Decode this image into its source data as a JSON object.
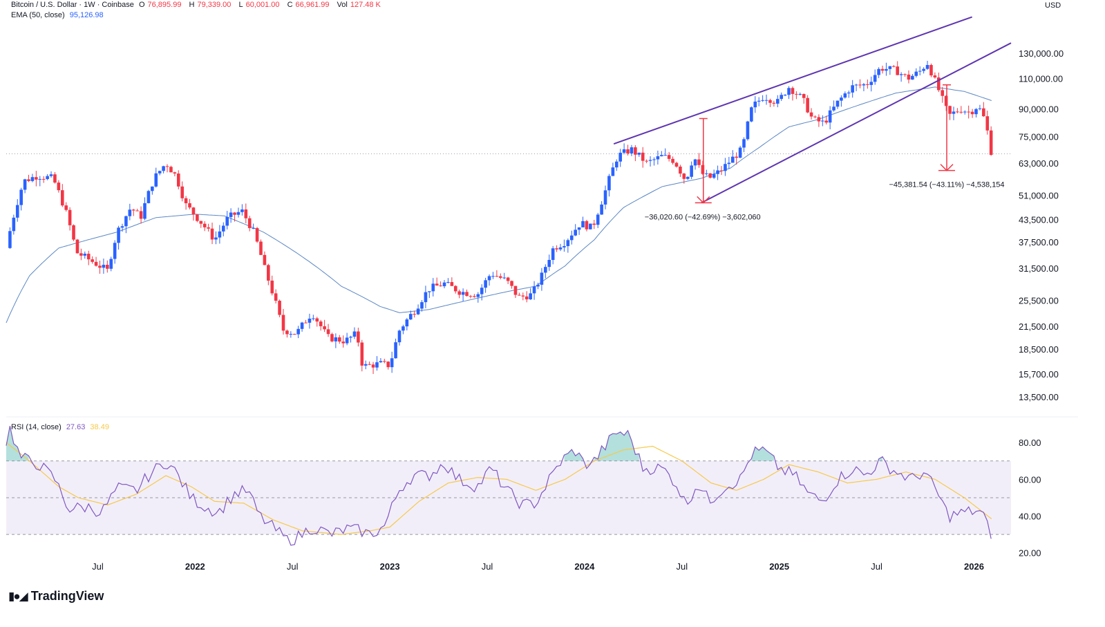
{
  "header": {
    "symbol": "Bitcoin / U.S. Dollar · 1W · Coinbase",
    "open_label": "O",
    "open": "76,895.99",
    "high_label": "H",
    "high": "79,339.00",
    "low_label": "L",
    "low": "60,001.00",
    "close_label": "C",
    "close": "66,961.99",
    "vol_label": "Vol",
    "vol": "127.48 K",
    "ema_label": "EMA (50, close)",
    "ema_value": "95,126.98"
  },
  "rsi_legend": {
    "label": "RSI (14, close)",
    "value": "27.63",
    "ma_value": "38.49"
  },
  "brand": {
    "name": "TradingView"
  },
  "colors": {
    "up": "#2962ff",
    "down": "#f23645",
    "ema": "#5b87c5",
    "rsi": "#7e57c2",
    "rsi_ma": "#f7c948",
    "wedge": "#5e35b1",
    "measure": "#f23645"
  },
  "chart_data": [
    {
      "type": "candlestick",
      "title": "Bitcoin / U.S. Dollar · 1W · Coinbase",
      "y_scale": "log",
      "currency": "USD",
      "ylim": [
        12000,
        170000
      ],
      "y_ticks": [
        {
          "v": 130000,
          "t": "130,000.00"
        },
        {
          "v": 110000,
          "t": "110,000.00"
        },
        {
          "v": 90000,
          "t": "90,000.00"
        },
        {
          "v": 75000,
          "t": "75,000.00"
        },
        {
          "v": 63000,
          "t": "63,000.00"
        },
        {
          "v": 51000,
          "t": "51,000.00"
        },
        {
          "v": 43500,
          "t": "43,500.00"
        },
        {
          "v": 37500,
          "t": "37,500.00"
        },
        {
          "v": 31500,
          "t": "31,500.00"
        },
        {
          "v": 25500,
          "t": "25,500.00"
        },
        {
          "v": 21500,
          "t": "21,500.00"
        },
        {
          "v": 18500,
          "t": "18,500.00"
        },
        {
          "v": 15700,
          "t": "15,700.00"
        },
        {
          "v": 13500,
          "t": "13,500.00"
        }
      ],
      "x_ticks": [
        {
          "t": "Jul",
          "x": 2021.5
        },
        {
          "t": "2022",
          "x": 2022.0,
          "bold": true
        },
        {
          "t": "Jul",
          "x": 2022.5
        },
        {
          "t": "2023",
          "x": 2023.0,
          "bold": true
        },
        {
          "t": "Jul",
          "x": 2023.5
        },
        {
          "t": "2024",
          "x": 2024.0,
          "bold": true
        },
        {
          "t": "Jul",
          "x": 2024.5
        },
        {
          "t": "2025",
          "x": 2025.0,
          "bold": true
        },
        {
          "t": "Jul",
          "x": 2025.5
        },
        {
          "t": "2026",
          "x": 2026.0,
          "bold": true
        }
      ],
      "x_range": [
        2021.03,
        2026.19
      ],
      "price_anchors": [
        [
          2021.03,
          36000
        ],
        [
          2021.12,
          56000
        ],
        [
          2021.19,
          58000
        ],
        [
          2021.27,
          57000
        ],
        [
          2021.34,
          45000
        ],
        [
          2021.39,
          35000
        ],
        [
          2021.47,
          33000
        ],
        [
          2021.55,
          31000
        ],
        [
          2021.6,
          40000
        ],
        [
          2021.67,
          47000
        ],
        [
          2021.72,
          44000
        ],
        [
          2021.79,
          57000
        ],
        [
          2021.85,
          63000
        ],
        [
          2021.9,
          58000
        ],
        [
          2021.95,
          48000
        ],
        [
          2022.04,
          42000
        ],
        [
          2022.1,
          38000
        ],
        [
          2022.17,
          44000
        ],
        [
          2022.24,
          46000
        ],
        [
          2022.3,
          40000
        ],
        [
          2022.36,
          31000
        ],
        [
          2022.45,
          21000
        ],
        [
          2022.52,
          20500
        ],
        [
          2022.6,
          23500
        ],
        [
          2022.68,
          20000
        ],
        [
          2022.77,
          19500
        ],
        [
          2022.83,
          20500
        ],
        [
          2022.86,
          16500
        ],
        [
          2022.95,
          16800
        ],
        [
          2023.0,
          16600
        ],
        [
          2023.05,
          21000
        ],
        [
          2023.13,
          24000
        ],
        [
          2023.2,
          27500
        ],
        [
          2023.28,
          28500
        ],
        [
          2023.36,
          27000
        ],
        [
          2023.45,
          26500
        ],
        [
          2023.52,
          30500
        ],
        [
          2023.6,
          29000
        ],
        [
          2023.66,
          26000
        ],
        [
          2023.73,
          26500
        ],
        [
          2023.78,
          30000
        ],
        [
          2023.84,
          36000
        ],
        [
          2023.9,
          37500
        ],
        [
          2023.98,
          42500
        ],
        [
          2024.04,
          41000
        ],
        [
          2024.1,
          51000
        ],
        [
          2024.17,
          66000
        ],
        [
          2024.24,
          69000
        ],
        [
          2024.32,
          63000
        ],
        [
          2024.4,
          66000
        ],
        [
          2024.46,
          64000
        ],
        [
          2024.52,
          56000
        ],
        [
          2024.56,
          66000
        ],
        [
          2024.6,
          59000
        ],
        [
          2024.64,
          57000
        ],
        [
          2024.7,
          60000
        ],
        [
          2024.76,
          65000
        ],
        [
          2024.81,
          69000
        ],
        [
          2024.86,
          91000
        ],
        [
          2024.92,
          98000
        ],
        [
          2024.99,
          94000
        ],
        [
          2025.05,
          104000
        ],
        [
          2025.12,
          96000
        ],
        [
          2025.17,
          84000
        ],
        [
          2025.23,
          82000
        ],
        [
          2025.3,
          94000
        ],
        [
          2025.37,
          104000
        ],
        [
          2025.45,
          106000
        ],
        [
          2025.52,
          118000
        ],
        [
          2025.6,
          116000
        ],
        [
          2025.66,
          110000
        ],
        [
          2025.72,
          115000
        ],
        [
          2025.76,
          122000
        ],
        [
          2025.8,
          108000
        ],
        [
          2025.84,
          95000
        ],
        [
          2025.87,
          86000
        ],
        [
          2025.93,
          90000
        ],
        [
          2025.98,
          88000
        ],
        [
          2026.02,
          92000
        ],
        [
          2026.05,
          85000
        ],
        [
          2026.07,
          77000
        ],
        [
          2026.09,
          66962
        ]
      ],
      "ema_anchors": [
        [
          2021.03,
          22000
        ],
        [
          2021.15,
          30000
        ],
        [
          2021.3,
          36000
        ],
        [
          2021.45,
          38000
        ],
        [
          2021.6,
          40000
        ],
        [
          2021.8,
          44000
        ],
        [
          2022.0,
          45000
        ],
        [
          2022.15,
          44500
        ],
        [
          2022.35,
          40000
        ],
        [
          2022.55,
          34000
        ],
        [
          2022.75,
          28000
        ],
        [
          2022.95,
          24500
        ],
        [
          2023.05,
          23500
        ],
        [
          2023.2,
          24000
        ],
        [
          2023.4,
          25500
        ],
        [
          2023.6,
          27000
        ],
        [
          2023.75,
          28000
        ],
        [
          2023.9,
          32000
        ],
        [
          2024.05,
          38000
        ],
        [
          2024.2,
          47000
        ],
        [
          2024.4,
          54000
        ],
        [
          2024.6,
          57000
        ],
        [
          2024.75,
          61000
        ],
        [
          2024.9,
          70000
        ],
        [
          2025.05,
          80000
        ],
        [
          2025.2,
          84000
        ],
        [
          2025.4,
          92000
        ],
        [
          2025.6,
          100000
        ],
        [
          2025.8,
          104000
        ],
        [
          2025.95,
          101000
        ],
        [
          2026.09,
          95127
        ]
      ],
      "current_price_line": 66962,
      "wedge": {
        "upper": [
          [
            2024.15,
            71500
          ],
          [
            2025.99,
            165000
          ]
        ],
        "lower": [
          [
            2024.6,
            48500
          ],
          [
            2026.19,
            139000
          ]
        ]
      },
      "measurements": [
        {
          "x": 2024.61,
          "from": 84500,
          "to": 48500,
          "label": "−36,020.60 (−42.69%) −3,602,060"
        },
        {
          "x": 2025.86,
          "from": 105500,
          "to": 60000,
          "label": "−45,381.54 (−43.11%) −4,538,154"
        }
      ]
    },
    {
      "type": "line",
      "title": "RSI (14, close)",
      "ylim": [
        18,
        94
      ],
      "y_ticks": [
        {
          "v": 80,
          "t": "80.00"
        },
        {
          "v": 60,
          "t": "60.00"
        },
        {
          "v": 40,
          "t": "40.00"
        },
        {
          "v": 20,
          "t": "20.00"
        }
      ],
      "bands": {
        "upper": 70,
        "middle": 50,
        "lower": 30
      },
      "series": [
        {
          "name": "RSI",
          "current": 27.63,
          "anchors": [
            [
              2021.03,
              80
            ],
            [
              2021.05,
              88
            ],
            [
              2021.1,
              72
            ],
            [
              2021.2,
              68
            ],
            [
              2021.28,
              60
            ],
            [
              2021.35,
              44
            ],
            [
              2021.45,
              45
            ],
            [
              2021.52,
              42
            ],
            [
              2021.6,
              55
            ],
            [
              2021.7,
              54
            ],
            [
              2021.76,
              62
            ],
            [
              2021.85,
              70
            ],
            [
              2021.9,
              64
            ],
            [
              2021.98,
              50
            ],
            [
              2022.05,
              45
            ],
            [
              2022.12,
              42
            ],
            [
              2022.2,
              52
            ],
            [
              2022.27,
              54
            ],
            [
              2022.33,
              40
            ],
            [
              2022.42,
              32
            ],
            [
              2022.47,
              27
            ],
            [
              2022.52,
              28
            ],
            [
              2022.6,
              34
            ],
            [
              2022.7,
              30
            ],
            [
              2022.78,
              33
            ],
            [
              2022.85,
              32
            ],
            [
              2022.9,
              30
            ],
            [
              2022.97,
              34
            ],
            [
              2023.05,
              55
            ],
            [
              2023.12,
              62
            ],
            [
              2023.2,
              62
            ],
            [
              2023.28,
              69
            ],
            [
              2023.35,
              60
            ],
            [
              2023.45,
              56
            ],
            [
              2023.52,
              66
            ],
            [
              2023.6,
              54
            ],
            [
              2023.68,
              46
            ],
            [
              2023.75,
              47
            ],
            [
              2023.82,
              60
            ],
            [
              2023.88,
              70
            ],
            [
              2023.95,
              76
            ],
            [
              2024.0,
              68
            ],
            [
              2024.05,
              70
            ],
            [
              2024.12,
              80
            ],
            [
              2024.17,
              86
            ],
            [
              2024.23,
              84
            ],
            [
              2024.3,
              66
            ],
            [
              2024.4,
              66
            ],
            [
              2024.47,
              58
            ],
            [
              2024.52,
              46
            ],
            [
              2024.58,
              58
            ],
            [
              2024.64,
              48
            ],
            [
              2024.72,
              56
            ],
            [
              2024.8,
              60
            ],
            [
              2024.86,
              74
            ],
            [
              2024.92,
              76
            ],
            [
              2025.0,
              66
            ],
            [
              2025.08,
              62
            ],
            [
              2025.15,
              52
            ],
            [
              2025.22,
              48
            ],
            [
              2025.3,
              60
            ],
            [
              2025.38,
              66
            ],
            [
              2025.44,
              62
            ],
            [
              2025.52,
              70
            ],
            [
              2025.6,
              64
            ],
            [
              2025.68,
              60
            ],
            [
              2025.74,
              64
            ],
            [
              2025.8,
              55
            ],
            [
              2025.87,
              40
            ],
            [
              2025.95,
              42
            ],
            [
              2026.02,
              43
            ],
            [
              2026.05,
              40
            ],
            [
              2026.09,
              27.63
            ]
          ]
        },
        {
          "name": "RSI MA",
          "current": 38.49,
          "anchors": [
            [
              2021.03,
              80
            ],
            [
              2021.15,
              70
            ],
            [
              2021.3,
              56
            ],
            [
              2021.4,
              50
            ],
            [
              2021.55,
              46
            ],
            [
              2021.7,
              52
            ],
            [
              2021.85,
              62
            ],
            [
              2021.98,
              56
            ],
            [
              2022.1,
              48
            ],
            [
              2022.25,
              47
            ],
            [
              2022.4,
              38
            ],
            [
              2022.55,
              32
            ],
            [
              2022.75,
              30
            ],
            [
              2022.9,
              32
            ],
            [
              2023.0,
              34
            ],
            [
              2023.15,
              48
            ],
            [
              2023.3,
              58
            ],
            [
              2023.45,
              61
            ],
            [
              2023.6,
              60
            ],
            [
              2023.75,
              54
            ],
            [
              2023.9,
              60
            ],
            [
              2024.05,
              70
            ],
            [
              2024.2,
              76
            ],
            [
              2024.35,
              78
            ],
            [
              2024.5,
              70
            ],
            [
              2024.65,
              58
            ],
            [
              2024.78,
              54
            ],
            [
              2024.92,
              60
            ],
            [
              2025.05,
              68
            ],
            [
              2025.2,
              64
            ],
            [
              2025.35,
              58
            ],
            [
              2025.5,
              60
            ],
            [
              2025.65,
              64
            ],
            [
              2025.8,
              60
            ],
            [
              2025.95,
              50
            ],
            [
              2026.09,
              38.49
            ]
          ]
        }
      ]
    }
  ]
}
